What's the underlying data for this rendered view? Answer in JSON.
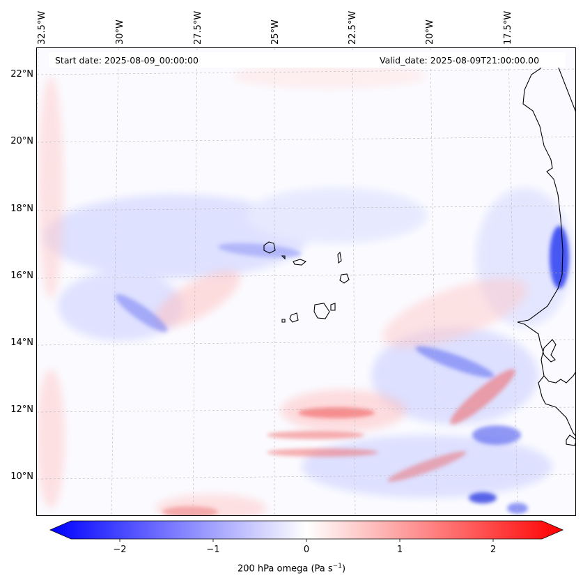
{
  "header": {
    "start_date": "Start date: 2025-08-09_00:00:00",
    "valid_date": "Valid_date: 2025-08-09T21:00:00.00"
  },
  "lat_labels": [
    "22°N",
    "20°N",
    "18°N",
    "16°N",
    "14°N",
    "12°N",
    "10°N"
  ],
  "lon_labels": [
    "32.5°W",
    "30°W",
    "27.5°W",
    "25°W",
    "22.5°W",
    "20°W",
    "17.5°W"
  ],
  "colorbar": {
    "label_main": "200 hPa omega (Pa s",
    "label_sup": "−1",
    "label_end": ")",
    "ticks": [
      "−2",
      "−1",
      "0",
      "1",
      "2"
    ],
    "range": [
      -2.7,
      2.7
    ],
    "colors": {
      "negative": "#0000ff",
      "zero": "#ffffff",
      "positive": "#ff0000"
    }
  },
  "map": {
    "extent_lon": [
      -32.8,
      -15.5
    ],
    "extent_lat": [
      8.9,
      22.8
    ],
    "field_colors": {
      "ascent": "#3d4cf0",
      "descent": "#f05050"
    }
  }
}
